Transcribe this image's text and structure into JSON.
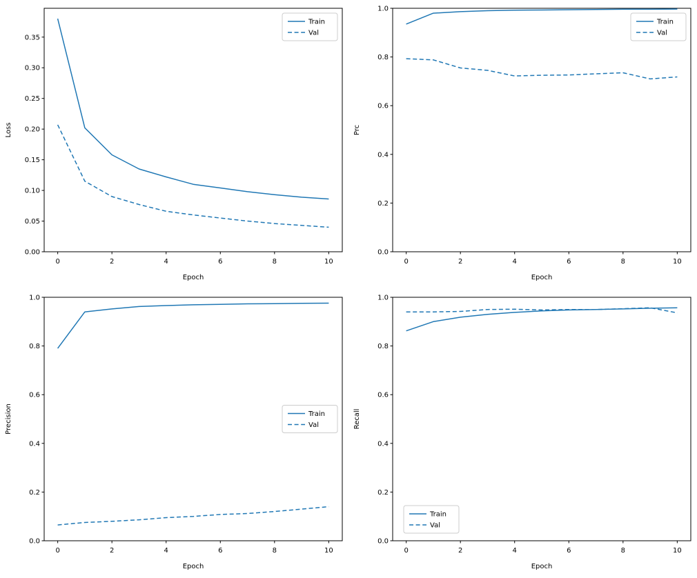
{
  "figure": {
    "background": "#ffffff",
    "accent": "#1f77b4"
  },
  "chart_data": [
    {
      "id": "loss",
      "type": "line",
      "title": "",
      "xlabel": "Epoch",
      "ylabel": "Loss",
      "x": [
        0,
        1,
        2,
        3,
        4,
        5,
        6,
        7,
        8,
        9,
        10
      ],
      "series": [
        {
          "name": "Train",
          "dash": false,
          "values": [
            0.38,
            0.202,
            0.158,
            0.135,
            0.122,
            0.11,
            0.104,
            0.098,
            0.093,
            0.089,
            0.086
          ]
        },
        {
          "name": "Val",
          "dash": true,
          "values": [
            0.207,
            0.115,
            0.09,
            0.077,
            0.066,
            0.06,
            0.055,
            0.05,
            0.046,
            0.043,
            0.04
          ]
        }
      ],
      "xlim": [
        -0.5,
        10.5
      ],
      "ylim": [
        0.0,
        0.397
      ],
      "xticks": [
        0,
        2,
        4,
        6,
        8,
        10
      ],
      "yticks": [
        0.0,
        0.05,
        0.1,
        0.15,
        0.2,
        0.25,
        0.3,
        0.35
      ],
      "y_decimals": 2,
      "grid": false,
      "legend_pos": "upper-right",
      "color": "#1f77b4"
    },
    {
      "id": "prc",
      "type": "line",
      "title": "",
      "xlabel": "Epoch",
      "ylabel": "Prc",
      "x": [
        0,
        1,
        2,
        3,
        4,
        5,
        6,
        7,
        8,
        9,
        10
      ],
      "series": [
        {
          "name": "Train",
          "dash": false,
          "values": [
            0.935,
            0.98,
            0.986,
            0.99,
            0.992,
            0.993,
            0.994,
            0.995,
            0.996,
            0.996,
            0.997
          ]
        },
        {
          "name": "Val",
          "dash": true,
          "values": [
            0.793,
            0.788,
            0.755,
            0.745,
            0.722,
            0.725,
            0.726,
            0.731,
            0.735,
            0.71,
            0.718
          ]
        }
      ],
      "xlim": [
        -0.5,
        10.5
      ],
      "ylim": [
        0.0,
        1.0
      ],
      "xticks": [
        0,
        2,
        4,
        6,
        8,
        10
      ],
      "yticks": [
        0.0,
        0.2,
        0.4,
        0.6,
        0.8,
        1.0
      ],
      "y_decimals": 1,
      "grid": false,
      "legend_pos": "upper-right",
      "color": "#1f77b4"
    },
    {
      "id": "precision",
      "type": "line",
      "title": "",
      "xlabel": "Epoch",
      "ylabel": "Precision",
      "x": [
        0,
        1,
        2,
        3,
        4,
        5,
        6,
        7,
        8,
        9,
        10
      ],
      "series": [
        {
          "name": "Train",
          "dash": false,
          "values": [
            0.79,
            0.94,
            0.952,
            0.962,
            0.966,
            0.969,
            0.971,
            0.973,
            0.974,
            0.975,
            0.976
          ]
        },
        {
          "name": "Val",
          "dash": true,
          "values": [
            0.065,
            0.075,
            0.08,
            0.086,
            0.095,
            0.1,
            0.108,
            0.112,
            0.12,
            0.13,
            0.14
          ]
        }
      ],
      "xlim": [
        -0.5,
        10.5
      ],
      "ylim": [
        0.0,
        1.0
      ],
      "xticks": [
        0,
        2,
        4,
        6,
        8,
        10
      ],
      "yticks": [
        0.0,
        0.2,
        0.4,
        0.6,
        0.8,
        1.0
      ],
      "y_decimals": 1,
      "grid": false,
      "legend_pos": "center-right",
      "color": "#1f77b4"
    },
    {
      "id": "recall",
      "type": "line",
      "title": "",
      "xlabel": "Epoch",
      "ylabel": "Recall",
      "x": [
        0,
        1,
        2,
        3,
        4,
        5,
        6,
        7,
        8,
        9,
        10
      ],
      "series": [
        {
          "name": "Train",
          "dash": false,
          "values": [
            0.862,
            0.9,
            0.918,
            0.93,
            0.938,
            0.944,
            0.948,
            0.95,
            0.952,
            0.955,
            0.957
          ]
        },
        {
          "name": "Val",
          "dash": true,
          "values": [
            0.94,
            0.94,
            0.942,
            0.95,
            0.951,
            0.948,
            0.95,
            0.95,
            0.953,
            0.957,
            0.936
          ]
        }
      ],
      "xlim": [
        -0.5,
        10.5
      ],
      "ylim": [
        0.0,
        1.0
      ],
      "xticks": [
        0,
        2,
        4,
        6,
        8,
        10
      ],
      "yticks": [
        0.0,
        0.2,
        0.4,
        0.6,
        0.8,
        1.0
      ],
      "y_decimals": 1,
      "grid": false,
      "legend_pos": "lower-left",
      "color": "#1f77b4"
    }
  ]
}
